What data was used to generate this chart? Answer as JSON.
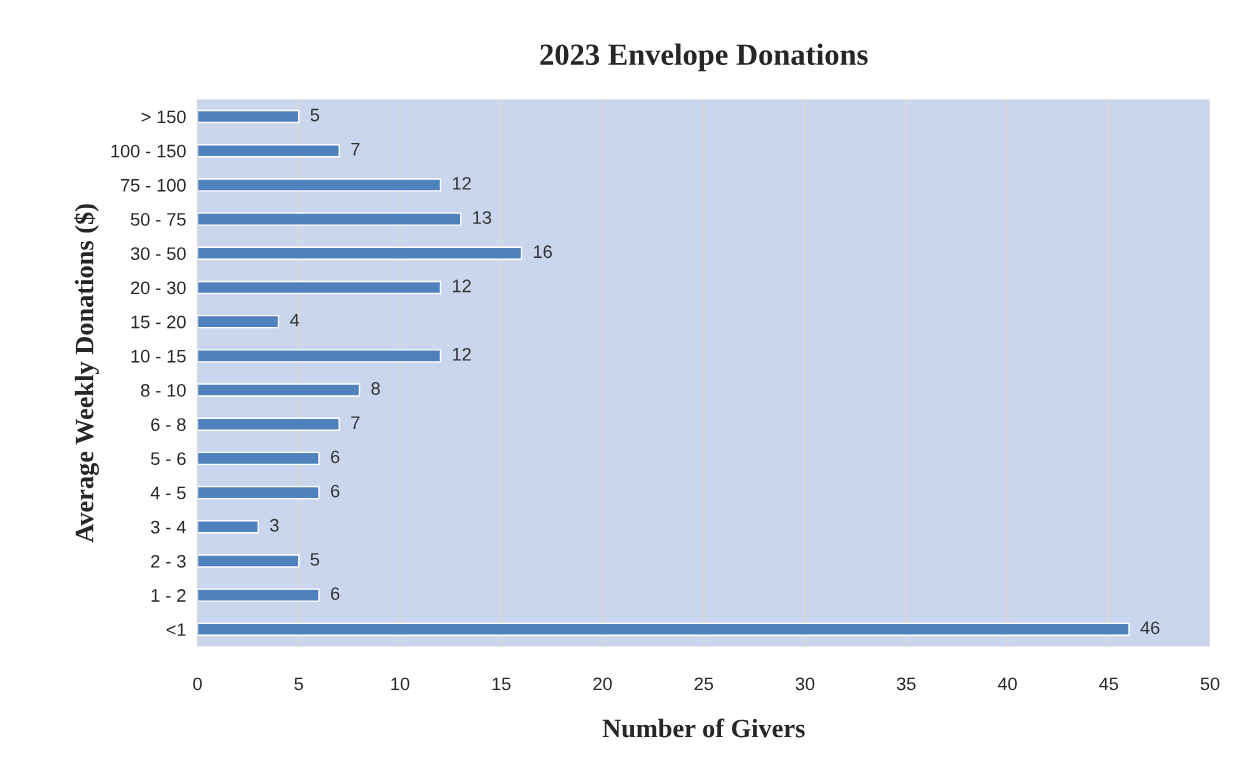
{
  "chart_data": {
    "type": "bar",
    "orientation": "horizontal",
    "title": "2023 Envelope Donations",
    "xlabel": "Number of Givers",
    "ylabel": "Average Weekly Donations ($)",
    "categories": [
      "> 150",
      "100 - 150",
      "75 - 100",
      "50 - 75",
      "30 - 50",
      "20 - 30",
      "15 - 20",
      "10 - 15",
      "8 - 10",
      "6 - 8",
      "5 - 6",
      "4 - 5",
      "3 - 4",
      "2 - 3",
      "1 - 2",
      "<1"
    ],
    "values": [
      5,
      7,
      12,
      13,
      16,
      12,
      4,
      12,
      8,
      7,
      6,
      6,
      3,
      5,
      6,
      46
    ],
    "color": "#4f81bd",
    "xlim": [
      0,
      50
    ],
    "xticks": [
      0,
      5,
      10,
      15,
      20,
      25,
      30,
      35,
      40,
      45,
      50
    ],
    "grid": "x",
    "data_labels": true
  }
}
